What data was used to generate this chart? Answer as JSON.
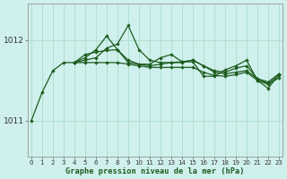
{
  "background_color": "#cff0ec",
  "grid_color": "#aaddcc",
  "line_color": "#1e5c1e",
  "x_ticks": [
    0,
    1,
    2,
    3,
    4,
    5,
    6,
    7,
    8,
    9,
    10,
    11,
    12,
    13,
    14,
    15,
    16,
    17,
    18,
    19,
    20,
    21,
    22,
    23
  ],
  "y_ticks": [
    1011,
    1012
  ],
  "ylim": [
    1010.55,
    1012.45
  ],
  "xlim": [
    -0.3,
    23.3
  ],
  "xlabel": "Graphe pression niveau de la mer (hPa)",
  "lines": [
    {
      "x": [
        0,
        1,
        2,
        3,
        4,
        5,
        6,
        7,
        8,
        9,
        10,
        11,
        12,
        13,
        14,
        15,
        16,
        17,
        18,
        19,
        20,
        21,
        22,
        23
      ],
      "y": [
        1011.0,
        1011.35,
        1011.62,
        1011.72,
        1011.72,
        1011.75,
        1011.78,
        1011.9,
        1011.95,
        1012.18,
        1011.88,
        1011.75,
        1011.72,
        1011.72,
        1011.73,
        1011.75,
        1011.68,
        1011.6,
        1011.58,
        1011.6,
        1011.62,
        1011.52,
        1011.48,
        1011.58
      ]
    },
    {
      "x": [
        4,
        5,
        6,
        7,
        8,
        9,
        10,
        11,
        12,
        13,
        14,
        15,
        16,
        17,
        18,
        19,
        20,
        21,
        22,
        23
      ],
      "y": [
        1011.72,
        1011.78,
        1011.88,
        1012.05,
        1011.88,
        1011.72,
        1011.7,
        1011.7,
        1011.78,
        1011.82,
        1011.73,
        1011.73,
        1011.55,
        1011.55,
        1011.63,
        1011.68,
        1011.75,
        1011.5,
        1011.4,
        1011.57
      ]
    },
    {
      "x": [
        4,
        5,
        6,
        7,
        8,
        9,
        10,
        11,
        12,
        13,
        14,
        15,
        16,
        17,
        18,
        19,
        20,
        21,
        22,
        23
      ],
      "y": [
        1011.72,
        1011.82,
        1011.85,
        1011.87,
        1011.88,
        1011.75,
        1011.7,
        1011.68,
        1011.7,
        1011.72,
        1011.72,
        1011.75,
        1011.68,
        1011.62,
        1011.6,
        1011.65,
        1011.68,
        1011.52,
        1011.46,
        1011.56
      ]
    },
    {
      "x": [
        4,
        5,
        6,
        7,
        8,
        9,
        10,
        11,
        12,
        13,
        14,
        15,
        16,
        17,
        18,
        19,
        20,
        21,
        22,
        23
      ],
      "y": [
        1011.72,
        1011.72,
        1011.72,
        1011.72,
        1011.72,
        1011.7,
        1011.68,
        1011.66,
        1011.66,
        1011.66,
        1011.66,
        1011.66,
        1011.6,
        1011.56,
        1011.55,
        1011.57,
        1011.6,
        1011.5,
        1011.45,
        1011.53
      ]
    }
  ]
}
